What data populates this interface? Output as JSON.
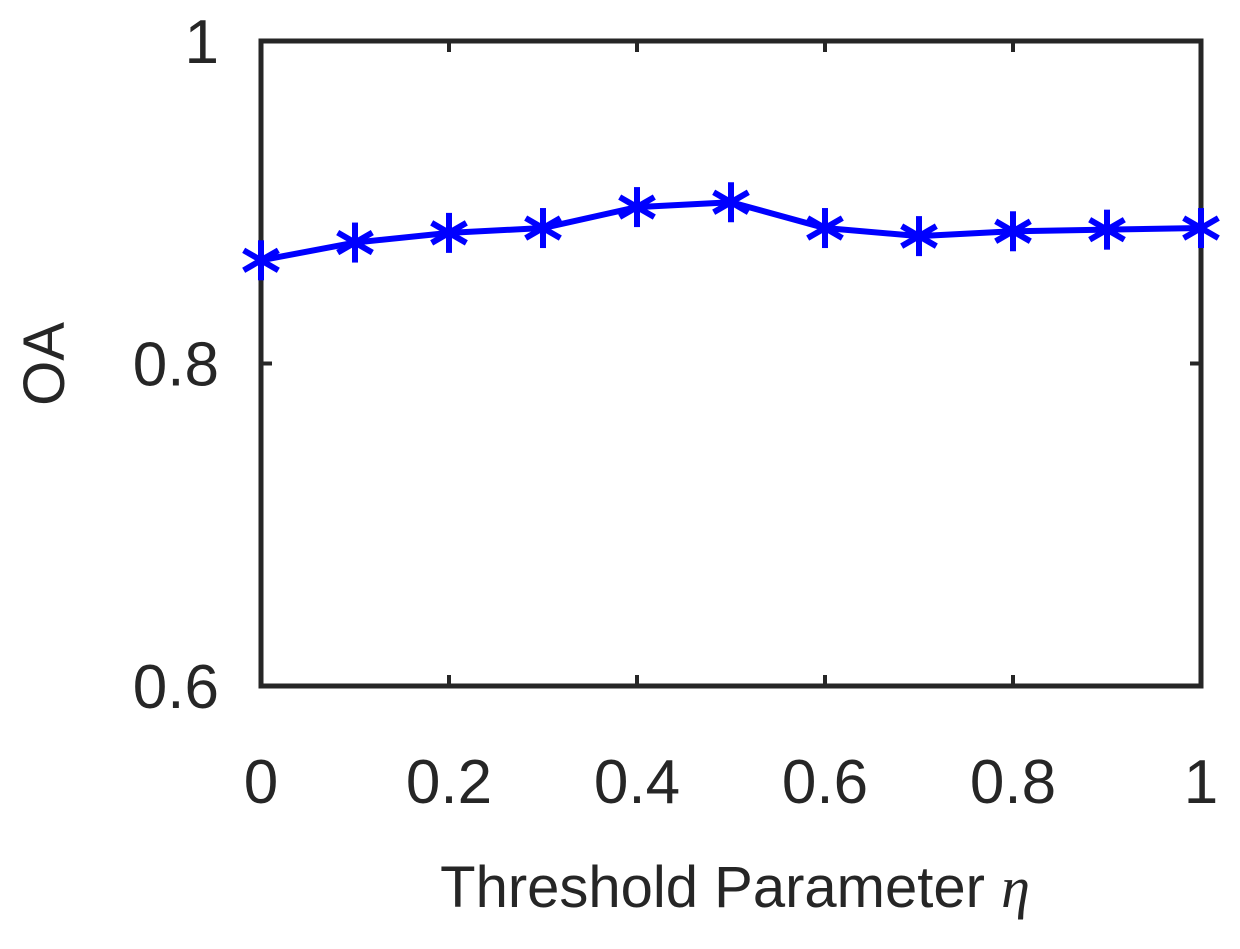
{
  "chart_data": {
    "type": "line",
    "title": "",
    "xlabel": "Threshold Parameter",
    "xlabel_symbol": "η",
    "ylabel": "OA",
    "xlim": [
      0,
      1
    ],
    "ylim": [
      0.6,
      1
    ],
    "x_ticks": [
      "0",
      "0.2",
      "0.4",
      "0.6",
      "0.8",
      "1"
    ],
    "y_ticks": [
      "0.6",
      "0.8",
      "1"
    ],
    "grid": false,
    "legend": "none",
    "series": [
      {
        "color": "#0000ff",
        "marker": "asterisk",
        "x": [
          0,
          0.1,
          0.2,
          0.3,
          0.4,
          0.5,
          0.6,
          0.7,
          0.8,
          0.9,
          1.0
        ],
        "values": [
          0.864,
          0.875,
          0.881,
          0.884,
          0.897,
          0.9,
          0.884,
          0.879,
          0.882,
          0.883,
          0.884
        ]
      }
    ]
  }
}
